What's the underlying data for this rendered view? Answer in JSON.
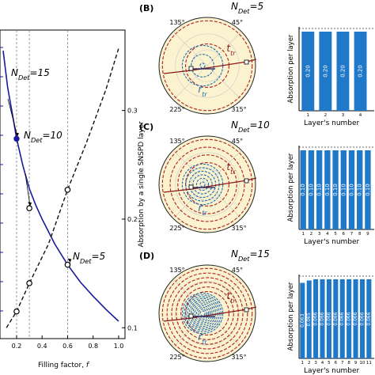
{
  "chart_data": [
    {
      "id": "left",
      "type": "line",
      "x_axis": {
        "label": "Filling factor, f",
        "label_main": "Filling factor, ",
        "label_var": "f",
        "range": [
          0.07,
          1.05
        ],
        "ticks": [
          "0.2",
          "0.4",
          "0.6",
          "0.8",
          "1.0"
        ],
        "tick_values": [
          0.2,
          0.4,
          0.6,
          0.8,
          1.0
        ]
      },
      "y_right_axis": {
        "label": "Absorption by a single SNSPD layer",
        "range": [
          0.09,
          0.374
        ],
        "ticks": [
          "0.1",
          "0.2",
          "0.3"
        ],
        "tick_values": [
          0.1,
          0.2,
          0.3
        ]
      },
      "vlines": [
        0.2,
        0.3,
        0.6
      ],
      "series": [
        {
          "style": "solid",
          "color": "#1a1a9c",
          "points": [
            [
              0.095,
              0.355
            ],
            [
              0.13,
              0.321
            ],
            [
              0.17,
              0.295
            ],
            [
              0.2,
              0.274
            ],
            [
              0.25,
              0.249
            ],
            [
              0.3,
              0.228
            ],
            [
              0.35,
              0.213
            ],
            [
              0.4,
              0.2
            ],
            [
              0.5,
              0.177
            ],
            [
              0.6,
              0.158
            ],
            [
              0.7,
              0.142
            ],
            [
              0.8,
              0.129
            ],
            [
              0.9,
              0.117
            ],
            [
              1.0,
              0.106
            ]
          ]
        },
        {
          "style": "dashed",
          "color": "#111111",
          "points": [
            [
              0.12,
              0.1
            ],
            [
              0.2,
              0.115
            ],
            [
              0.3,
              0.141
            ],
            [
              0.45,
              0.177
            ],
            [
              0.6,
              0.227
            ],
            [
              0.75,
              0.271
            ],
            [
              0.9,
              0.319
            ],
            [
              1.0,
              0.357
            ]
          ]
        }
      ],
      "markers": [
        [
          0.2,
          0.115
        ],
        [
          0.3,
          0.141
        ],
        [
          0.6,
          0.227
        ],
        [
          0.3,
          0.21
        ],
        [
          0.6,
          0.158
        ]
      ],
      "blue_markers": [
        [
          0.2,
          0.274
        ]
      ],
      "annotations": [
        {
          "main": "N",
          "sub": "Det",
          "value": "=15",
          "at": [
            0.2,
            0.274
          ]
        },
        {
          "main": "N",
          "sub": "Det",
          "value": "=10",
          "at": [
            0.3,
            0.21
          ]
        },
        {
          "main": "N",
          "sub": "Det",
          "value": "=5",
          "at": [
            0.6,
            0.158
          ]
        }
      ]
    },
    {
      "id": "B",
      "panel_label": "(B)",
      "title_main": "N",
      "title_sub": "Det",
      "title_value": "=5",
      "polar": {
        "angle_labels": [
          "135°",
          "45°",
          "225°",
          "315°"
        ],
        "r_label": "r",
        "r_sub": "tr",
        "t_label": "t",
        "t_sub": "tr",
        "blue_rings": 3,
        "red_rings": 2
      },
      "bar": {
        "type": "bar",
        "ylabel": "Absorption per layer",
        "xlabel": "Layer's number",
        "categories": [
          "1",
          "2",
          "3",
          "4"
        ],
        "values": [
          0.2,
          0.2,
          0.2,
          0.2
        ],
        "labels": [
          "0.20",
          "0.20",
          "0.20",
          "0.20"
        ]
      }
    },
    {
      "id": "C",
      "panel_label": "(C)",
      "title_main": "N",
      "title_sub": "Det",
      "title_value": "=10",
      "polar": {
        "angle_labels": [
          "135°",
          "45°",
          "225°",
          "315°"
        ],
        "r_label": "r",
        "r_sub": "tr",
        "t_label": "t",
        "t_sub": "tr",
        "blue_rings": 6,
        "red_rings": 4
      },
      "bar": {
        "type": "bar",
        "ylabel": "Absorption per layer",
        "xlabel": "Layer's number",
        "categories": [
          "1",
          "2",
          "3",
          "4",
          "5",
          "6",
          "7",
          "8",
          "9"
        ],
        "values": [
          0.1,
          0.1,
          0.1,
          0.1,
          0.1,
          0.1,
          0.1,
          0.1,
          0.1
        ],
        "labels": [
          "0.10",
          "0.10",
          "0.10",
          "0.10",
          "0.10",
          "0.10",
          "0.10",
          "0.10",
          "0.10"
        ]
      }
    },
    {
      "id": "D",
      "panel_label": "(D)",
      "title_main": "N",
      "title_sub": "Det",
      "title_value": "=15",
      "polar": {
        "angle_labels": [
          "135°",
          "45°",
          "225°",
          "315°"
        ],
        "r_label": "r",
        "r_sub": "tr",
        "t_label": "t",
        "t_sub": "tr",
        "blue_rings": 11,
        "red_rings": 6
      },
      "bar": {
        "type": "bar",
        "ylabel": "Absorption per layer",
        "xlabel": "Layer's number",
        "categories": [
          "1",
          "2",
          "3",
          "4",
          "5",
          "6",
          "7",
          "8",
          "9",
          "10",
          "11"
        ],
        "values": [
          0.063,
          0.065,
          0.066,
          0.066,
          0.066,
          0.066,
          0.066,
          0.066,
          0.066,
          0.066,
          0.066
        ],
        "labels": [
          "0.063",
          "0.065",
          "0.066",
          "0.066",
          "0.066",
          "0.066",
          "0.066",
          "0.066",
          "0.066",
          "0.066",
          "0.066"
        ]
      }
    }
  ]
}
